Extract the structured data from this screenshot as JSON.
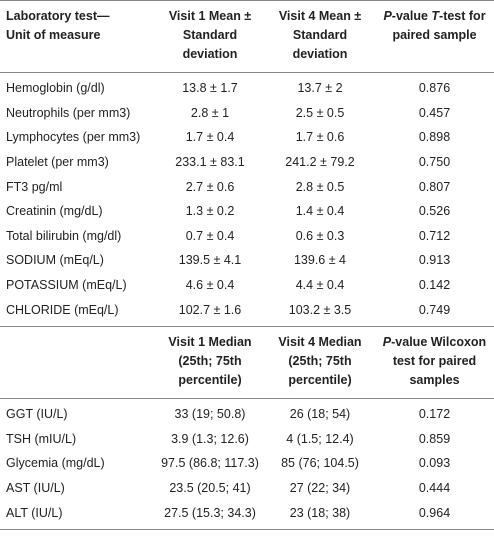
{
  "sections": [
    {
      "header": [
        [
          "Laboratory test—",
          "Unit of measure"
        ],
        [
          "Visit 1 Mean ± Standard deviation"
        ],
        [
          "Visit 4 Mean ± Standard deviation"
        ],
        [
          "P",
          "-value ",
          "T",
          "-test for paired sample"
        ]
      ],
      "rows": [
        [
          "Hemoglobin (g/dl)",
          "13.8 ± 1.7",
          "13.7 ± 2",
          "0.876"
        ],
        [
          "Neutrophils (per mm3)",
          "2.8 ± 1",
          "2.5 ± 0.5",
          "0.457"
        ],
        [
          "Lymphocytes (per mm3)",
          "1.7 ± 0.4",
          "1.7 ± 0.6",
          "0.898"
        ],
        [
          "Platelet (per mm3)",
          "233.1 ± 83.1",
          "241.2 ± 79.2",
          "0.750"
        ],
        [
          "FT3 pg/ml",
          "2.7 ± 0.6",
          "2.8 ± 0.5",
          "0.807"
        ],
        [
          "Creatinin (mg/dL)",
          "1.3 ± 0.2",
          "1.4 ± 0.4",
          "0.526"
        ],
        [
          "Total bilirubin (mg/dl)",
          "0.7 ± 0.4",
          "0.6 ± 0.3",
          "0.712"
        ],
        [
          "SODIUM (mEq/L)",
          "139.5 ± 4.1",
          "139.6 ± 4",
          "0.913"
        ],
        [
          "POTASSIUM (mEq/L)",
          "4.6 ± 0.4",
          "4.4 ± 0.4",
          "0.142"
        ],
        [
          "CHLORIDE (mEq/L)",
          "102.7 ± 1.6",
          "103.2 ± 3.5",
          "0.749"
        ]
      ]
    },
    {
      "header": [
        [],
        [
          "Visit 1 Median (25th; 75th percentile)"
        ],
        [
          "Visit 4 Median (25th; 75th percentile)"
        ],
        [
          "P",
          "-value Wilcoxon test for paired samples"
        ]
      ],
      "rows": [
        [
          "GGT (IU/L)",
          "33 (19; 50.8)",
          "26 (18; 54)",
          "0.172"
        ],
        [
          "TSH (mIU/L)",
          "3.9 (1.3; 12.6)",
          "4 (1.5; 12.4)",
          "0.859"
        ],
        [
          "Glycemia (mg/dL)",
          "97.5 (86.8; 117.3)",
          "85 (76; 104.5)",
          "0.093"
        ],
        [
          "AST (IU/L)",
          "23.5 (20.5; 41)",
          "27 (22; 34)",
          "0.444"
        ],
        [
          "ALT (IU/L)",
          "27.5 (15.3; 34.3)",
          "23 (18; 38)",
          "0.964"
        ]
      ]
    }
  ]
}
